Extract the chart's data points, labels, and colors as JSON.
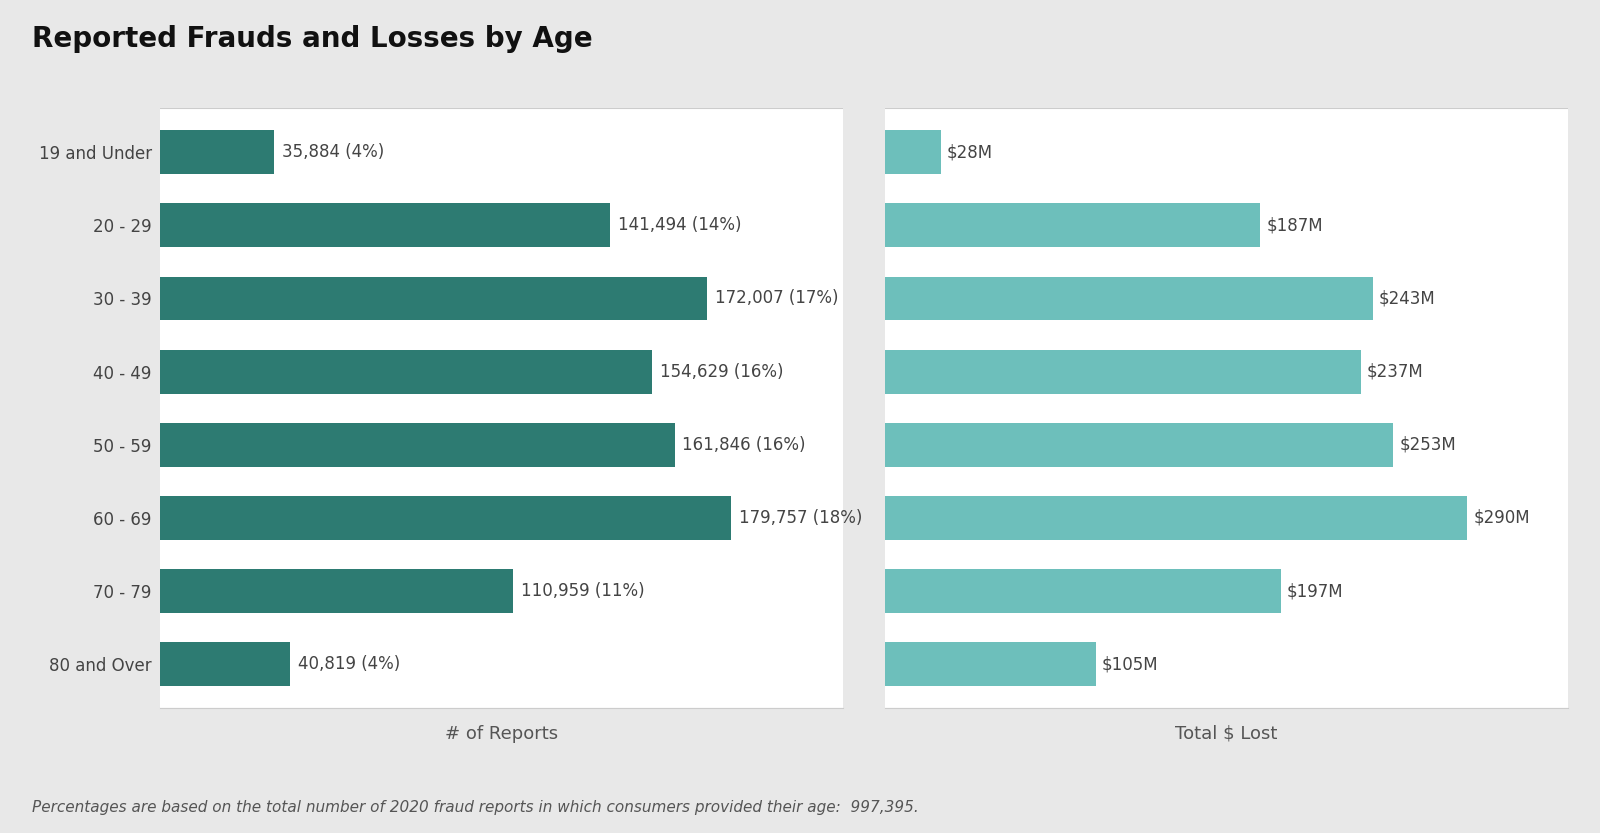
{
  "title": "Reported Frauds and Losses by Age",
  "age_groups": [
    "19 and Under",
    "20 - 29",
    "30 - 39",
    "40 - 49",
    "50 - 59",
    "60 - 69",
    "70 - 79",
    "80 and Over"
  ],
  "reports": [
    35884,
    141494,
    172007,
    154629,
    161846,
    179757,
    110959,
    40819
  ],
  "report_labels": [
    "35,884 (4%)",
    "141,494 (14%)",
    "172,007 (17%)",
    "154,629 (16%)",
    "161,846 (16%)",
    "179,757 (18%)",
    "110,959 (11%)",
    "40,819 (4%)"
  ],
  "losses": [
    28,
    187,
    243,
    237,
    253,
    290,
    197,
    105
  ],
  "loss_labels": [
    "$28M",
    "$187M",
    "$243M",
    "$237M",
    "$253M",
    "$290M",
    "$197M",
    "$105M"
  ],
  "reports_color": "#2d7b72",
  "losses_color": "#6dbfbb",
  "xlabel_reports": "# of Reports",
  "xlabel_losses": "Total $ Lost",
  "footnote": "Percentages are based on the total number of 2020 fraud reports in which consumers provided their age:  997,395.",
  "outer_bg": "#e8e8e8",
  "inner_bg": "#ffffff",
  "title_fontsize": 20,
  "label_fontsize": 12,
  "tick_fontsize": 12,
  "footnote_fontsize": 11,
  "reports_max": 215000,
  "losses_max": 340
}
